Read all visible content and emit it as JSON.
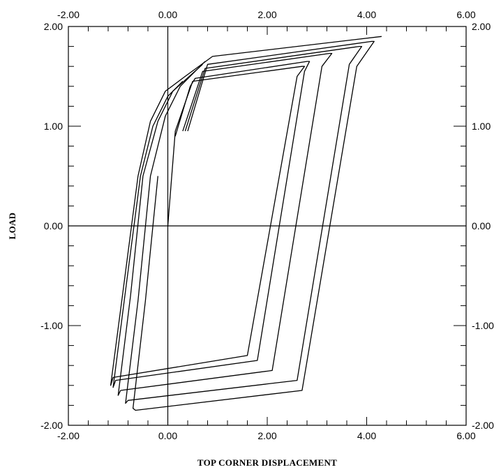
{
  "chart_data": {
    "type": "line",
    "title": "",
    "xlabel": "TOP CORNER DISPLACEMENT",
    "ylabel": "LOAD",
    "xlim": [
      -2.0,
      6.0
    ],
    "ylim": [
      -2.0,
      2.0
    ],
    "x_ticks": [
      -2.0,
      0.0,
      2.0,
      4.0,
      6.0
    ],
    "y_ticks": [
      -2.0,
      -1.0,
      0.0,
      1.0,
      2.0
    ],
    "x_tick_labels": [
      "-2.00",
      "0.00",
      "2.00",
      "4.00",
      "6.00"
    ],
    "y_tick_labels": [
      "-2.00",
      "-1.00",
      "0.00",
      "1.00",
      "2.00"
    ],
    "x_minor_step": 0.4,
    "y_minor_step": 0.2,
    "mirror_axes": true,
    "zero_lines": true,
    "grid": false,
    "legend": "none",
    "series": [
      {
        "x": [
          0.0,
          0.15,
          0.5,
          2.7,
          2.75,
          2.6,
          1.6,
          -1.1,
          -1.15,
          -0.9,
          -0.6,
          -0.35,
          -0.05,
          0.35,
          0.9,
          4.3
        ],
        "y": [
          0.0,
          0.95,
          1.45,
          1.6,
          1.6,
          1.5,
          -1.3,
          -1.52,
          -1.6,
          -0.65,
          0.5,
          1.05,
          1.35,
          1.5,
          1.7,
          1.9
        ]
      },
      {
        "x": [
          0.15,
          0.45,
          0.55,
          2.8,
          2.85,
          2.75,
          1.8,
          -1.05,
          -1.1,
          -0.85,
          -0.55,
          -0.3,
          0.0,
          0.3
        ],
        "y": [
          0.9,
          1.4,
          1.48,
          1.65,
          1.65,
          1.55,
          -1.35,
          -1.55,
          -1.62,
          -0.65,
          0.5,
          1.0,
          1.3,
          1.45
        ]
      },
      {
        "x": [
          0.3,
          0.7,
          3.25,
          3.3,
          3.1,
          2.1,
          -0.95,
          -1.0,
          -0.75,
          -0.5,
          -0.2,
          0.1,
          0.7
        ],
        "y": [
          0.95,
          1.55,
          1.73,
          1.73,
          1.6,
          -1.45,
          -1.65,
          -1.7,
          -0.7,
          0.5,
          1.05,
          1.35,
          1.62
        ]
      },
      {
        "x": [
          0.35,
          0.75,
          3.85,
          3.9,
          3.65,
          2.6,
          -0.8,
          -0.85,
          -0.6,
          -0.35,
          -0.05,
          0.25,
          0.75
        ],
        "y": [
          0.95,
          1.58,
          1.8,
          1.8,
          1.62,
          -1.55,
          -1.75,
          -1.78,
          -0.75,
          0.5,
          1.1,
          1.4,
          1.65
        ]
      },
      {
        "x": [
          0.4,
          0.8,
          4.1,
          4.15,
          3.8,
          2.7,
          -0.65,
          -0.7,
          -0.45,
          -0.2
        ],
        "y": [
          0.95,
          1.62,
          1.85,
          1.85,
          1.6,
          -1.65,
          -1.85,
          -1.83,
          -0.75,
          0.5
        ]
      }
    ]
  }
}
